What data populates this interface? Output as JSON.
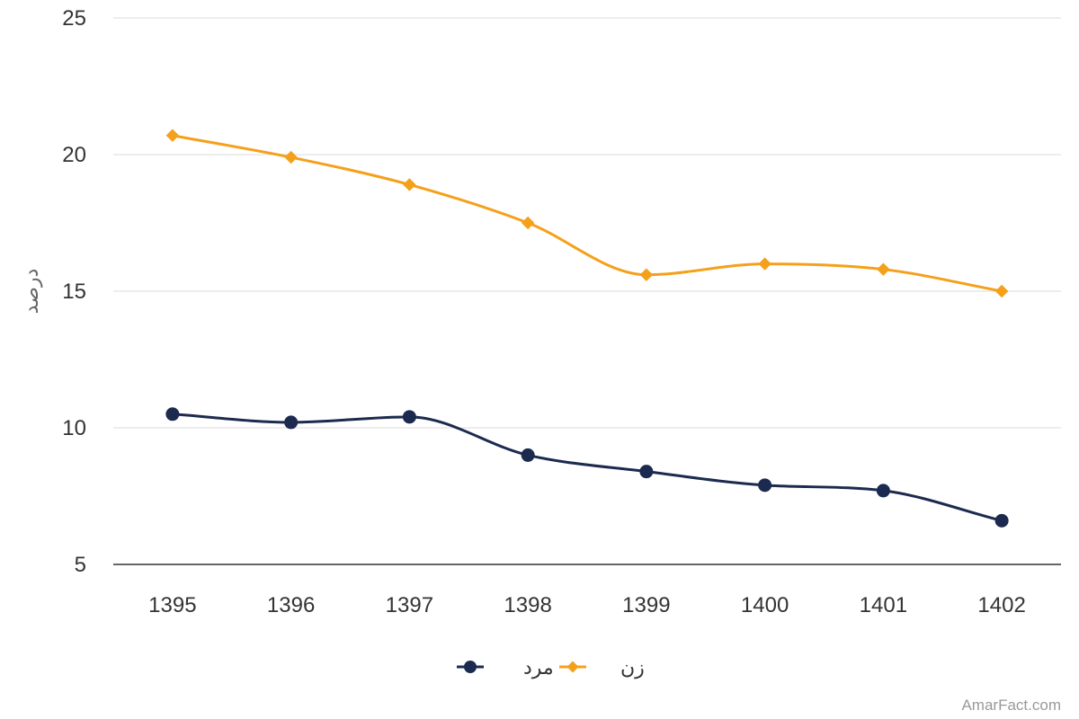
{
  "chart_data": {
    "type": "line",
    "categories": [
      "1395",
      "1396",
      "1397",
      "1398",
      "1399",
      "1400",
      "1401",
      "1402"
    ],
    "series": [
      {
        "name": "مرد",
        "color": "#1b2a4e",
        "marker": "circle",
        "values": [
          10.5,
          10.2,
          10.4,
          9.0,
          8.4,
          7.9,
          7.7,
          6.6
        ]
      },
      {
        "name": "زن",
        "color": "#f5a01a",
        "marker": "diamond",
        "values": [
          20.7,
          19.9,
          18.9,
          17.5,
          15.6,
          16.0,
          15.8,
          15.0
        ]
      }
    ],
    "ylabel": "درصد",
    "xlabel": "",
    "ylim": [
      5,
      25
    ],
    "yticks": [
      "5",
      "10",
      "15",
      "20",
      "25"
    ],
    "grid": true,
    "legend_position": "bottom-center",
    "smooth": true
  },
  "credit": "AmarFact.com"
}
